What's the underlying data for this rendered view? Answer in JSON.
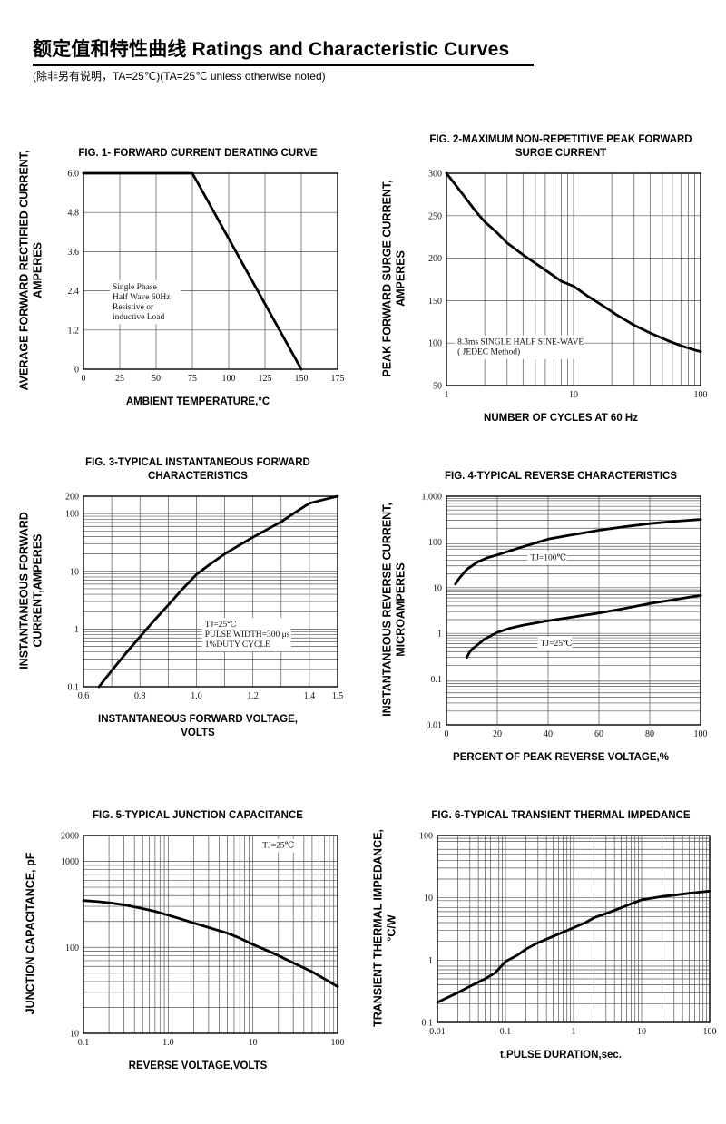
{
  "header": {
    "title": "额定值和特性曲线 Ratings and Characteristic Curves",
    "subtitle": "(除非另有说明，TA=25℃)(TA=25℃  unless otherwise noted)"
  },
  "chart_data": [
    {
      "id": "fig1",
      "type": "line",
      "title_lines": [
        "FIG. 1- FORWARD CURRENT DERATING CURVE"
      ],
      "ylabel_lines": [
        "AVERAGE FORWARD RECTIFIED CURRENT,",
        "AMPERES"
      ],
      "xlabel_lines": [
        "AMBIENT TEMPERATURE,°C"
      ],
      "x_axis": {
        "scale": "linear",
        "min": 0,
        "max": 175,
        "grid": [
          0,
          25,
          50,
          75,
          100,
          125,
          150,
          175
        ],
        "ticks": [
          {
            "v": 0,
            "label": "0"
          },
          {
            "v": 25,
            "label": "25"
          },
          {
            "v": 50,
            "label": "50"
          },
          {
            "v": 75,
            "label": "75"
          },
          {
            "v": 100,
            "label": "100"
          },
          {
            "v": 125,
            "label": "125"
          },
          {
            "v": 150,
            "label": "150"
          },
          {
            "v": 175,
            "label": "175"
          }
        ]
      },
      "y_axis": {
        "scale": "linear",
        "min": 0,
        "max": 6,
        "grid": [
          0,
          1.2,
          2.4,
          3.6,
          4.8,
          6
        ],
        "ticks": [
          {
            "v": 0,
            "label": "0"
          },
          {
            "v": 1.2,
            "label": "1.2"
          },
          {
            "v": 2.4,
            "label": "2.4"
          },
          {
            "v": 3.6,
            "label": "3.6"
          },
          {
            "v": 4.8,
            "label": "4.8"
          },
          {
            "v": 6,
            "label": "6.0"
          }
        ]
      },
      "series": [
        {
          "name": "derating-curve",
          "points": [
            [
              0,
              6
            ],
            [
              75,
              6
            ],
            [
              150,
              0
            ]
          ]
        }
      ],
      "annotations": [
        {
          "x": 20,
          "y": 2.66,
          "lines": [
            "Single Phase",
            "Half Wave 60Hz",
            "Resistive or",
            "inductive Load"
          ]
        }
      ]
    },
    {
      "id": "fig2",
      "type": "line",
      "title_lines": [
        "FIG. 2-MAXIMUM NON-REPETITIVE PEAK FORWARD",
        "SURGE CURRENT"
      ],
      "ylabel_lines": [
        "PEAK  FORWARD SURGE CURRENT,",
        "AMPERES"
      ],
      "xlabel_lines": [
        "NUMBER OF CYCLES AT 60 Hz"
      ],
      "x_axis": {
        "scale": "log",
        "min": 1,
        "max": 100,
        "ticks": [
          {
            "v": 1,
            "label": "1"
          },
          {
            "v": 10,
            "label": "10"
          },
          {
            "v": 100,
            "label": "100"
          }
        ]
      },
      "y_axis": {
        "scale": "linear",
        "min": 50,
        "max": 300,
        "grid": [
          50,
          100,
          150,
          200,
          250,
          300
        ],
        "ticks": [
          {
            "v": 50,
            "label": "50"
          },
          {
            "v": 100,
            "label": "100"
          },
          {
            "v": 150,
            "label": "150"
          },
          {
            "v": 200,
            "label": "200"
          },
          {
            "v": 250,
            "label": "250"
          },
          {
            "v": 300,
            "label": "300"
          }
        ]
      },
      "series": [
        {
          "name": "surge-current-curve",
          "points": [
            [
              1,
              300
            ],
            [
              1.3,
              278
            ],
            [
              1.7,
              255
            ],
            [
              2,
              243
            ],
            [
              2.5,
              230
            ],
            [
              3,
              218
            ],
            [
              4,
              204
            ],
            [
              5,
              194
            ],
            [
              6,
              186
            ],
            [
              8,
              173
            ],
            [
              10,
              167
            ],
            [
              13,
              155
            ],
            [
              17,
              144
            ],
            [
              22,
              133
            ],
            [
              30,
              121
            ],
            [
              40,
              112
            ],
            [
              55,
              103
            ],
            [
              70,
              97
            ],
            [
              85,
              93
            ],
            [
              100,
              90
            ]
          ]
        }
      ],
      "annotations": [
        {
          "x": 1.22,
          "y": 107,
          "lines": [
            "8.3ms SINGLE HALF SINE-WAVE",
            "( JEDEC Method)"
          ]
        }
      ]
    },
    {
      "id": "fig3",
      "type": "line",
      "title_lines": [
        "FIG. 3-TYPICAL INSTANTANEOUS FORWARD",
        "CHARACTERISTICS"
      ],
      "ylabel_lines": [
        "INSTANTANEOUS FORWARD",
        "CURRENT,AMPERES"
      ],
      "xlabel_lines": [
        "INSTANTANEOUS FORWARD VOLTAGE,",
        "VOLTS"
      ],
      "x_axis": {
        "scale": "linear",
        "min": 0.6,
        "max": 1.5,
        "grid": [
          0.6,
          0.7,
          0.8,
          0.9,
          1.0,
          1.1,
          1.2,
          1.3,
          1.4,
          1.5
        ],
        "ticks": [
          {
            "v": 0.6,
            "label": "0.6"
          },
          {
            "v": 0.8,
            "label": "0.8"
          },
          {
            "v": 1.0,
            "label": "1.0"
          },
          {
            "v": 1.2,
            "label": "1.2"
          },
          {
            "v": 1.4,
            "label": "1.4"
          },
          {
            "v": 1.5,
            "label": "1.5"
          }
        ]
      },
      "y_axis": {
        "scale": "log",
        "min": 0.1,
        "max": 200,
        "ticks": [
          {
            "v": 0.1,
            "label": "0.1"
          },
          {
            "v": 1,
            "label": "1"
          },
          {
            "v": 10,
            "label": "10"
          },
          {
            "v": 100,
            "label": "100"
          },
          {
            "v": 200,
            "label": "200"
          }
        ]
      },
      "series": [
        {
          "name": "forward-characteristic-curve",
          "points": [
            [
              0.655,
              0.1
            ],
            [
              0.7,
              0.19
            ],
            [
              0.75,
              0.38
            ],
            [
              0.8,
              0.73
            ],
            [
              0.85,
              1.4
            ],
            [
              0.9,
              2.6
            ],
            [
              0.95,
              4.9
            ],
            [
              1.0,
              8.8
            ],
            [
              1.05,
              13.5
            ],
            [
              1.1,
              20
            ],
            [
              1.15,
              28
            ],
            [
              1.2,
              39
            ],
            [
              1.25,
              53
            ],
            [
              1.3,
              72
            ],
            [
              1.35,
              105
            ],
            [
              1.4,
              151
            ],
            [
              1.45,
              174
            ],
            [
              1.5,
              200
            ]
          ]
        }
      ],
      "annotations": [
        {
          "x": 1.03,
          "y": 1.45,
          "lines": [
            "TJ=25℃",
            "PULSE WIDTH=300 μs",
            "1%DUTY CYCLE"
          ]
        }
      ]
    },
    {
      "id": "fig4",
      "type": "line",
      "title_lines": [
        "FIG. 4-TYPICAL REVERSE CHARACTERISTICS"
      ],
      "ylabel_lines": [
        "INSTANTANEOUS REVERSE CURRENT,",
        "MICROAMPERES"
      ],
      "xlabel_lines": [
        "PERCENT OF PEAK REVERSE VOLTAGE,%"
      ],
      "x_axis": {
        "scale": "linear",
        "min": 0,
        "max": 100,
        "grid": [
          0,
          20,
          40,
          60,
          80,
          100
        ],
        "ticks": [
          {
            "v": 0,
            "label": "0"
          },
          {
            "v": 20,
            "label": "20"
          },
          {
            "v": 40,
            "label": "40"
          },
          {
            "v": 60,
            "label": "60"
          },
          {
            "v": 80,
            "label": "80"
          },
          {
            "v": 100,
            "label": "100"
          }
        ]
      },
      "y_axis": {
        "scale": "log",
        "min": 0.01,
        "max": 1000,
        "ticks": [
          {
            "v": 0.01,
            "label": "0.01"
          },
          {
            "v": 0.1,
            "label": "0.1"
          },
          {
            "v": 1,
            "label": "1"
          },
          {
            "v": 10,
            "label": "10"
          },
          {
            "v": 100,
            "label": "100"
          },
          {
            "v": 1000,
            "label": "1,000"
          }
        ]
      },
      "series": [
        {
          "name": "tj-100c-curve",
          "points": [
            [
              3.5,
              12
            ],
            [
              5,
              16
            ],
            [
              8,
              25
            ],
            [
              12,
              36
            ],
            [
              16,
              45
            ],
            [
              20,
              52
            ],
            [
              25,
              64
            ],
            [
              30,
              78
            ],
            [
              35,
              95
            ],
            [
              40,
              115
            ],
            [
              50,
              145
            ],
            [
              60,
              180
            ],
            [
              70,
              215
            ],
            [
              80,
              252
            ],
            [
              90,
              283
            ],
            [
              100,
              310
            ]
          ]
        },
        {
          "name": "tj-25c-curve",
          "points": [
            [
              8,
              0.3
            ],
            [
              9,
              0.38
            ],
            [
              10,
              0.45
            ],
            [
              12,
              0.55
            ],
            [
              15,
              0.75
            ],
            [
              20,
              1.05
            ],
            [
              25,
              1.3
            ],
            [
              30,
              1.5
            ],
            [
              40,
              1.9
            ],
            [
              50,
              2.3
            ],
            [
              60,
              2.8
            ],
            [
              70,
              3.5
            ],
            [
              80,
              4.5
            ],
            [
              90,
              5.5
            ],
            [
              100,
              6.8
            ]
          ]
        }
      ],
      "annotations": [
        {
          "x": 33,
          "y": 58,
          "lines": [
            "TJ=100℃"
          ]
        },
        {
          "x": 37,
          "y": 0.77,
          "lines": [
            "TJ=25℃"
          ]
        }
      ]
    },
    {
      "id": "fig5",
      "type": "line",
      "title_lines": [
        "FIG. 5-TYPICAL JUNCTION CAPACITANCE"
      ],
      "ylabel_lines": [
        "JUNCTION CAPACITANCE, pF"
      ],
      "xlabel_lines": [
        "REVERSE VOLTAGE,VOLTS"
      ],
      "x_axis": {
        "scale": "log",
        "min": 0.1,
        "max": 100,
        "ticks": [
          {
            "v": 0.1,
            "label": "0.1"
          },
          {
            "v": 1,
            "label": "1.0"
          },
          {
            "v": 10,
            "label": "10"
          },
          {
            "v": 100,
            "label": "100"
          }
        ]
      },
      "y_axis": {
        "scale": "log",
        "min": 10,
        "max": 2000,
        "ticks": [
          {
            "v": 10,
            "label": "10"
          },
          {
            "v": 100,
            "label": "100"
          },
          {
            "v": 1000,
            "label": "1000"
          },
          {
            "v": 2000,
            "label": "2000"
          }
        ]
      },
      "series": [
        {
          "name": "junction-capacitance-curve",
          "points": [
            [
              0.1,
              350
            ],
            [
              0.15,
              340
            ],
            [
              0.2,
              330
            ],
            [
              0.3,
              312
            ],
            [
              0.5,
              283
            ],
            [
              0.7,
              262
            ],
            [
              1,
              237
            ],
            [
              1.5,
              210
            ],
            [
              2,
              192
            ],
            [
              3,
              170
            ],
            [
              5,
              146
            ],
            [
              7,
              128
            ],
            [
              10,
              108
            ],
            [
              15,
              91
            ],
            [
              20,
              80
            ],
            [
              30,
              66
            ],
            [
              50,
              52
            ],
            [
              70,
              43
            ],
            [
              100,
              35
            ]
          ]
        }
      ],
      "annotations": [
        {
          "x": 13,
          "y": 1750,
          "lines": [
            "TJ=25℃"
          ]
        }
      ]
    },
    {
      "id": "fig6",
      "type": "line",
      "title_lines": [
        "FIG. 6-TYPICAL TRANSIENT THERMAL IMPEDANCE"
      ],
      "ylabel_lines": [
        "TRANSIENT THERMAL IMPEDANCE,",
        "°C/W"
      ],
      "xlabel_lines": [
        "t,PULSE DURATION,sec."
      ],
      "x_axis": {
        "scale": "log",
        "min": 0.01,
        "max": 100,
        "ticks": [
          {
            "v": 0.01,
            "label": "0.01"
          },
          {
            "v": 0.1,
            "label": "0.1"
          },
          {
            "v": 1,
            "label": "1"
          },
          {
            "v": 10,
            "label": "10"
          },
          {
            "v": 100,
            "label": "100"
          }
        ]
      },
      "y_axis": {
        "scale": "log",
        "min": 0.1,
        "max": 100,
        "ticks": [
          {
            "v": 0.1,
            "label": "0.1"
          },
          {
            "v": 1,
            "label": "1"
          },
          {
            "v": 10,
            "label": "10"
          },
          {
            "v": 100,
            "label": "100"
          }
        ]
      },
      "series": [
        {
          "name": "thermal-impedance-curve",
          "points": [
            [
              0.01,
              0.21
            ],
            [
              0.02,
              0.3
            ],
            [
              0.03,
              0.38
            ],
            [
              0.05,
              0.5
            ],
            [
              0.07,
              0.62
            ],
            [
              0.1,
              0.95
            ],
            [
              0.15,
              1.2
            ],
            [
              0.2,
              1.5
            ],
            [
              0.3,
              1.9
            ],
            [
              0.5,
              2.4
            ],
            [
              0.7,
              2.8
            ],
            [
              1,
              3.3
            ],
            [
              1.5,
              4.0
            ],
            [
              2,
              4.8
            ],
            [
              3,
              5.6
            ],
            [
              5,
              6.9
            ],
            [
              7,
              8.0
            ],
            [
              10,
              9.3
            ],
            [
              15,
              10
            ],
            [
              20,
              10.5
            ],
            [
              30,
              11
            ],
            [
              50,
              11.8
            ],
            [
              70,
              12.3
            ],
            [
              100,
              12.8
            ]
          ]
        }
      ],
      "annotations": []
    }
  ]
}
